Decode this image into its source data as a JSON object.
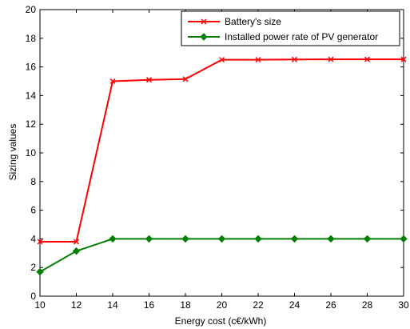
{
  "chart_data": {
    "type": "line",
    "xlabel": "Energy cost (c€/kWh)",
    "ylabel": "Sizing values",
    "xlim": [
      10,
      30
    ],
    "ylim": [
      0,
      20
    ],
    "xticks": [
      10,
      12,
      14,
      16,
      18,
      20,
      22,
      24,
      26,
      28,
      30
    ],
    "yticks": [
      0,
      2,
      4,
      6,
      8,
      10,
      12,
      14,
      16,
      18,
      20
    ],
    "grid": false,
    "legend_position": "top-right",
    "x": [
      10,
      12,
      14,
      16,
      18,
      20,
      22,
      24,
      26,
      28,
      30
    ],
    "series": [
      {
        "name": "Battery's size",
        "color": "#ff0000",
        "marker": "x",
        "values": [
          3.8,
          3.8,
          15.0,
          15.1,
          15.15,
          16.5,
          16.5,
          16.52,
          16.53,
          16.53,
          16.53
        ]
      },
      {
        "name": "Installed power rate of PV generator",
        "color": "#008000",
        "marker": "diamond",
        "values": [
          1.7,
          3.15,
          4.0,
          4.0,
          4.0,
          4.0,
          4.0,
          4.0,
          4.0,
          4.0,
          4.0
        ]
      }
    ]
  }
}
